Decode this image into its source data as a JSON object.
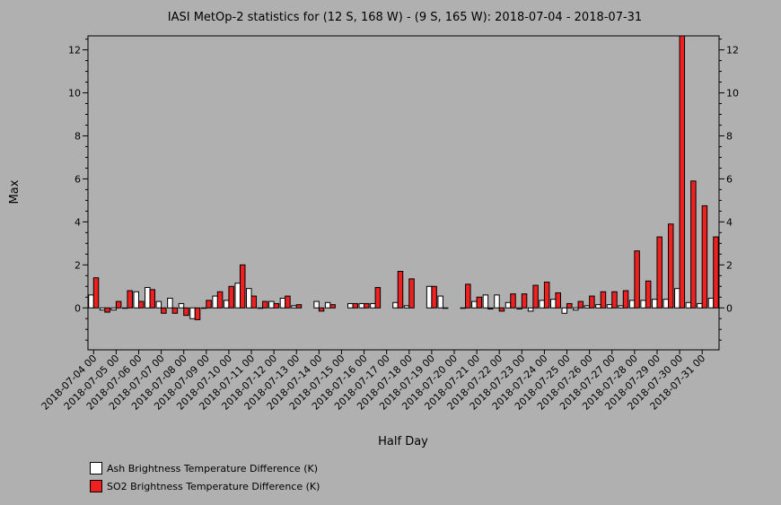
{
  "chart_data": {
    "type": "bar",
    "title": "IASI MetOp-2 statistics for (12 S, 168 W) - (9 S, 165 W): 2018-07-04 - 2018-07-31",
    "xlabel": "Half Day",
    "ylabel": "Max",
    "ylim": [
      -1.95,
      12.65
    ],
    "yticks": [
      0,
      2,
      4,
      6,
      8,
      10,
      12
    ],
    "categories": [
      "2018-07-04 00",
      "2018-07-04 12",
      "2018-07-05 00",
      "2018-07-05 12",
      "2018-07-06 00",
      "2018-07-06 12",
      "2018-07-07 00",
      "2018-07-07 12",
      "2018-07-08 00",
      "2018-07-08 12",
      "2018-07-09 00",
      "2018-07-09 12",
      "2018-07-10 00",
      "2018-07-10 12",
      "2018-07-11 00",
      "2018-07-11 12",
      "2018-07-12 00",
      "2018-07-12 12",
      "2018-07-13 00",
      "2018-07-13 12",
      "2018-07-14 00",
      "2018-07-14 12",
      "2018-07-15 00",
      "2018-07-15 12",
      "2018-07-16 00",
      "2018-07-16 12",
      "2018-07-17 00",
      "2018-07-17 12",
      "2018-07-18 00",
      "2018-07-18 12",
      "2018-07-19 00",
      "2018-07-19 12",
      "2018-07-20 00",
      "2018-07-20 12",
      "2018-07-21 00",
      "2018-07-21 12",
      "2018-07-22 00",
      "2018-07-22 12",
      "2018-07-23 00",
      "2018-07-23 12",
      "2018-07-24 00",
      "2018-07-24 12",
      "2018-07-25 00",
      "2018-07-25 12",
      "2018-07-26 00",
      "2018-07-26 12",
      "2018-07-27 00",
      "2018-07-27 12",
      "2018-07-28 00",
      "2018-07-28 12",
      "2018-07-29 00",
      "2018-07-29 12",
      "2018-07-30 00",
      "2018-07-30 12",
      "2018-07-31 00",
      "2018-07-31 12"
    ],
    "tick_labels": [
      "2018-07-04 00",
      "2018-07-05 00",
      "2018-07-06 00",
      "2018-07-07 00",
      "2018-07-08 00",
      "2018-07-09 00",
      "2018-07-10 00",
      "2018-07-11 00",
      "2018-07-12 00",
      "2018-07-13 00",
      "2018-07-14 00",
      "2018-07-15 00",
      "2018-07-16 00",
      "2018-07-17 00",
      "2018-07-18 00",
      "2018-07-19 00",
      "2018-07-20 00",
      "2018-07-21 00",
      "2018-07-22 00",
      "2018-07-23 00",
      "2018-07-24 00",
      "2018-07-25 00",
      "2018-07-26 00",
      "2018-07-27 00",
      "2018-07-28 00",
      "2018-07-29 00",
      "2018-07-30 00",
      "2018-07-31 00"
    ],
    "series": [
      {
        "name": "Ash Brightness Temperature Difference (K)",
        "color": "#ffffff",
        "values": [
          0.6,
          -0.1,
          -0.1,
          0.0,
          0.75,
          0.95,
          0.3,
          0.45,
          0.2,
          -0.5,
          0.0,
          0.55,
          0.35,
          1.15,
          0.9,
          0.0,
          0.3,
          0.45,
          0.1,
          null,
          0.3,
          0.25,
          null,
          0.2,
          0.2,
          0.2,
          null,
          0.25,
          0.1,
          null,
          1.0,
          0.55,
          null,
          0.0,
          0.3,
          0.6,
          0.6,
          0.25,
          -0.05,
          -0.15,
          0.35,
          0.4,
          -0.25,
          -0.1,
          0.1,
          0.15,
          0.15,
          0.1,
          0.35,
          0.35,
          0.4,
          0.4,
          0.9,
          0.25,
          0.2,
          0.45
        ]
      },
      {
        "name": "SO2 Brightness Temperature Difference (K)",
        "color": "#ee2020",
        "values": [
          1.4,
          -0.2,
          0.3,
          0.8,
          0.3,
          0.85,
          -0.25,
          -0.25,
          -0.35,
          -0.55,
          0.35,
          0.75,
          1.0,
          2.0,
          0.55,
          0.3,
          0.2,
          0.55,
          0.15,
          null,
          -0.15,
          0.15,
          null,
          0.2,
          0.2,
          0.95,
          null,
          1.7,
          1.35,
          null,
          1.0,
          0.0,
          null,
          1.1,
          0.5,
          -0.05,
          -0.15,
          0.65,
          0.65,
          1.05,
          1.2,
          0.7,
          0.2,
          0.3,
          0.55,
          0.75,
          0.75,
          0.8,
          2.65,
          1.25,
          3.3,
          3.9,
          12.65,
          5.9,
          4.75,
          3.3
        ]
      }
    ],
    "grid": false,
    "legend": "bottom-left"
  }
}
